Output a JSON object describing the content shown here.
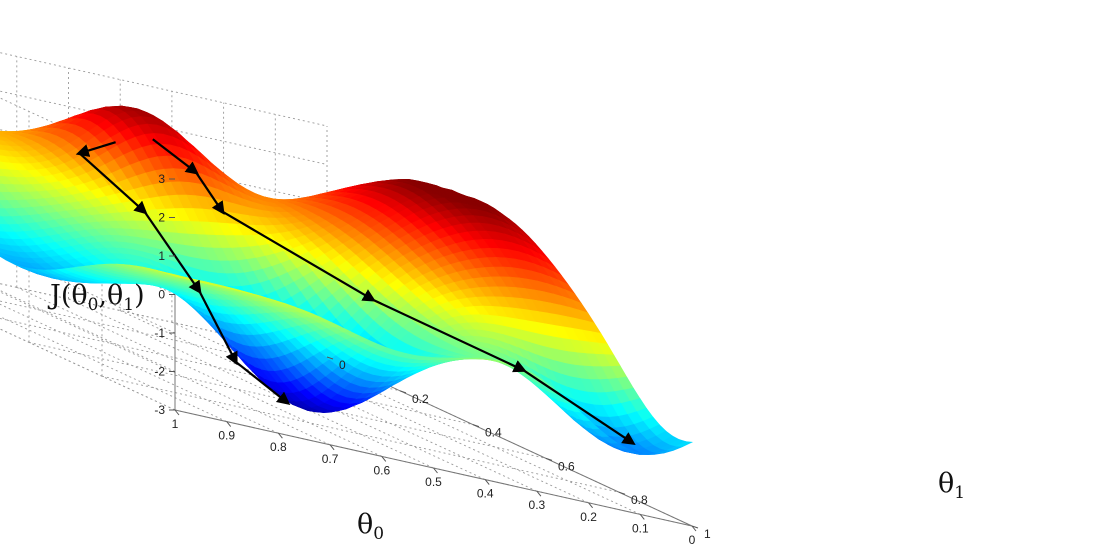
{
  "chart_data": {
    "type": "surface",
    "title": "",
    "zlabel": "J(θ0,θ1)",
    "xlabel": "θ0",
    "ylabel": "θ1",
    "xlim": [
      0,
      1
    ],
    "ylim": [
      0,
      1
    ],
    "zlim": [
      -3,
      3
    ],
    "x_ticks": [
      "0",
      "0.1",
      "0.2",
      "0.3",
      "0.4",
      "0.5",
      "0.6",
      "0.7",
      "0.8",
      "0.9",
      "1"
    ],
    "y_ticks": [
      "0",
      "0.2",
      "0.4",
      "0.6",
      "0.8",
      "1"
    ],
    "z_ticks": [
      "-3",
      "-2",
      "-1",
      "0",
      "1",
      "2",
      "3"
    ],
    "colormap": [
      "#00008f",
      "#0000ff",
      "#00ffff",
      "#ffff00",
      "#ff0000",
      "#800000"
    ],
    "grid": true,
    "series": [
      {
        "values": [
          [
            0.55,
            0.2,
            1.8
          ],
          [
            0.62,
            0.2,
            1.3
          ],
          [
            0.6,
            0.35,
            0.5
          ],
          [
            0.6,
            0.5,
            -0.9
          ],
          [
            0.6,
            0.6,
            -2.3
          ],
          [
            0.55,
            0.67,
            -2.9
          ]
        ]
      },
      {
        "values": [
          [
            0.45,
            0.16,
            2.0
          ],
          [
            0.43,
            0.25,
            1.6
          ],
          [
            0.4,
            0.28,
            0.8
          ],
          [
            0.3,
            0.55,
            0.0
          ],
          [
            0.15,
            0.75,
            -0.5
          ],
          [
            0.08,
            0.95,
            -1.3
          ]
        ]
      }
    ]
  }
}
